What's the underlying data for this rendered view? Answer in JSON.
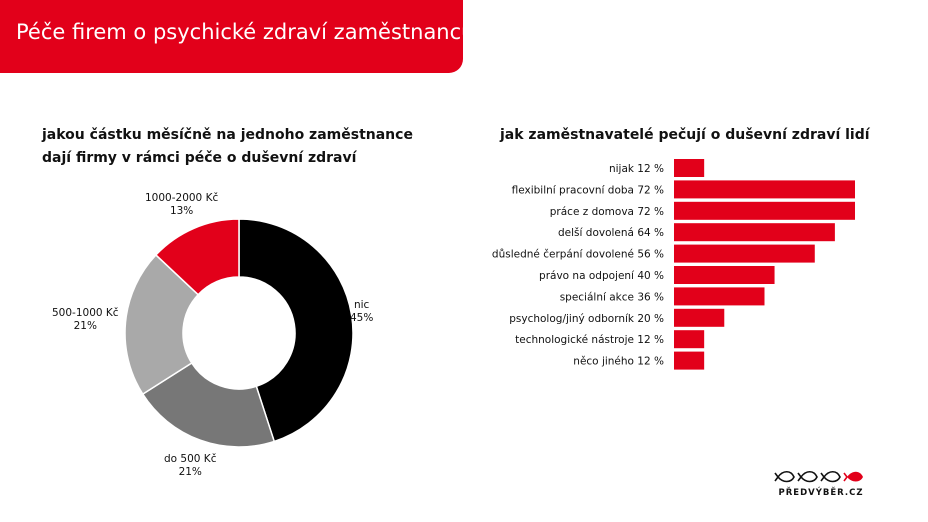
{
  "header": {
    "title": "Péče firem o psychické zdraví zaměstnanců"
  },
  "donut": {
    "title_line1": "jakou částku měsíčně na jednoho zaměstnance",
    "title_line2": "dají firmy v rámci péče o duševní zdraví"
  },
  "bars": {
    "title": "jak zaměstnavatelé pečují o duševní zdraví lidí"
  },
  "logo": {
    "text": "PŘEDVÝBĚR.CZ"
  },
  "chart_data": [
    {
      "type": "pie",
      "donut": true,
      "title": "jakou částku měsíčně na jednoho zaměstnance dají firmy v rámci péče o duševní zdraví",
      "slices": [
        {
          "label": "nic",
          "value": 45,
          "value_label": "45%",
          "color": "#000000"
        },
        {
          "label": "do 500 Kč",
          "value": 21,
          "value_label": "21%",
          "color": "#777777"
        },
        {
          "label": "500-1000 Kč",
          "value": 21,
          "value_label": "21%",
          "color": "#a9a9a9"
        },
        {
          "label": "1000-2000 Kč",
          "value": 13,
          "value_label": "13%",
          "color": "#e2001a"
        }
      ]
    },
    {
      "type": "bar",
      "orientation": "horizontal",
      "title": "jak zaměstnavatelé pečují o duševní zdraví lidí",
      "color": "#e2001a",
      "xlim": [
        0,
        100
      ],
      "categories": [
        "nijak 12 %",
        "flexibilní pracovní doba 72 %",
        "práce z domova 72 %",
        "delší dovolená 64 %",
        "důsledné čerpání dovolené 56 %",
        "právo na odpojení 40 %",
        "speciální akce 36 %",
        "psycholog/jiný odborník 20 %",
        "technologické nástroje 12 %",
        "něco jiného 12 %"
      ],
      "values": [
        12,
        72,
        72,
        64,
        56,
        40,
        36,
        20,
        12,
        12
      ]
    }
  ]
}
